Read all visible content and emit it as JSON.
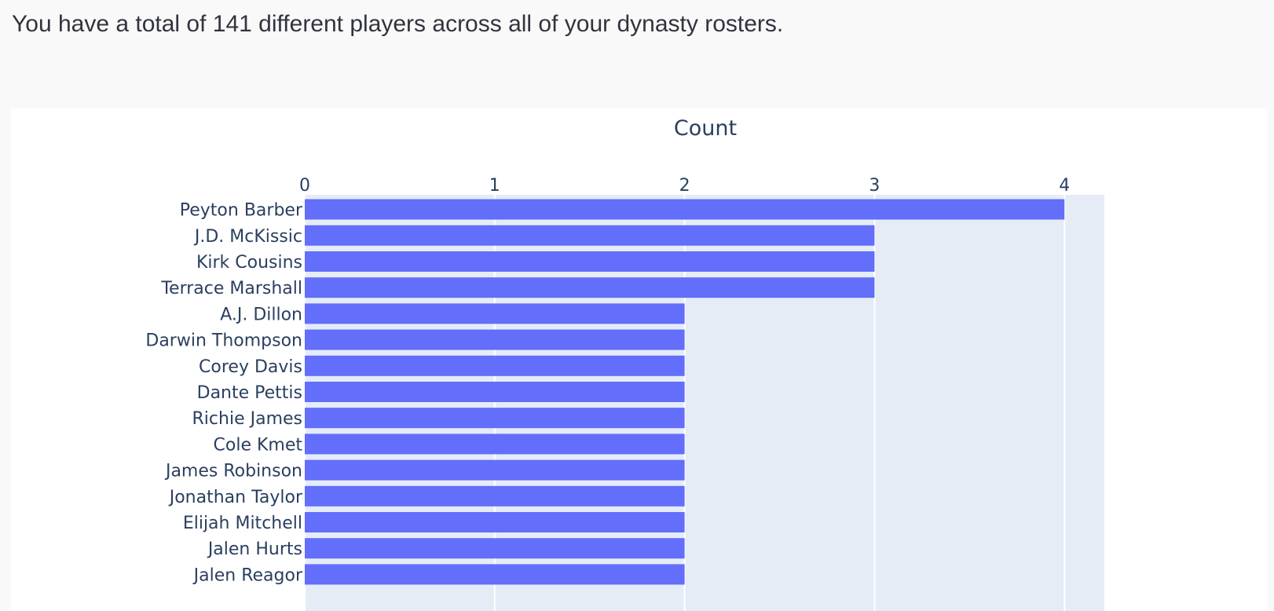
{
  "summary_text": "You have a total of 141 different players across all of your dynasty rosters.",
  "colors": {
    "bar": "#636efa",
    "plot_bg": "#e5ecf6",
    "text": "#2a3f5f",
    "grid": "#ffffff"
  },
  "chart_data": {
    "type": "bar",
    "orientation": "horizontal",
    "title": "",
    "xlabel": "Count",
    "ylabel": "",
    "x_axis_position": "top",
    "xlim": [
      0,
      4.21
    ],
    "xticks": [
      0,
      1,
      2,
      3,
      4
    ],
    "grid": true,
    "categories": [
      "Peyton Barber",
      "J.D. McKissic",
      "Kirk Cousins",
      "Terrace Marshall",
      "A.J. Dillon",
      "Darwin Thompson",
      "Corey Davis",
      "Dante Pettis",
      "Richie James",
      "Cole Kmet",
      "James Robinson",
      "Jonathan Taylor",
      "Elijah Mitchell",
      "Jalen Hurts",
      "Jalen Reagor"
    ],
    "values": [
      4,
      3,
      3,
      3,
      2,
      2,
      2,
      2,
      2,
      2,
      2,
      2,
      2,
      2,
      2
    ]
  }
}
